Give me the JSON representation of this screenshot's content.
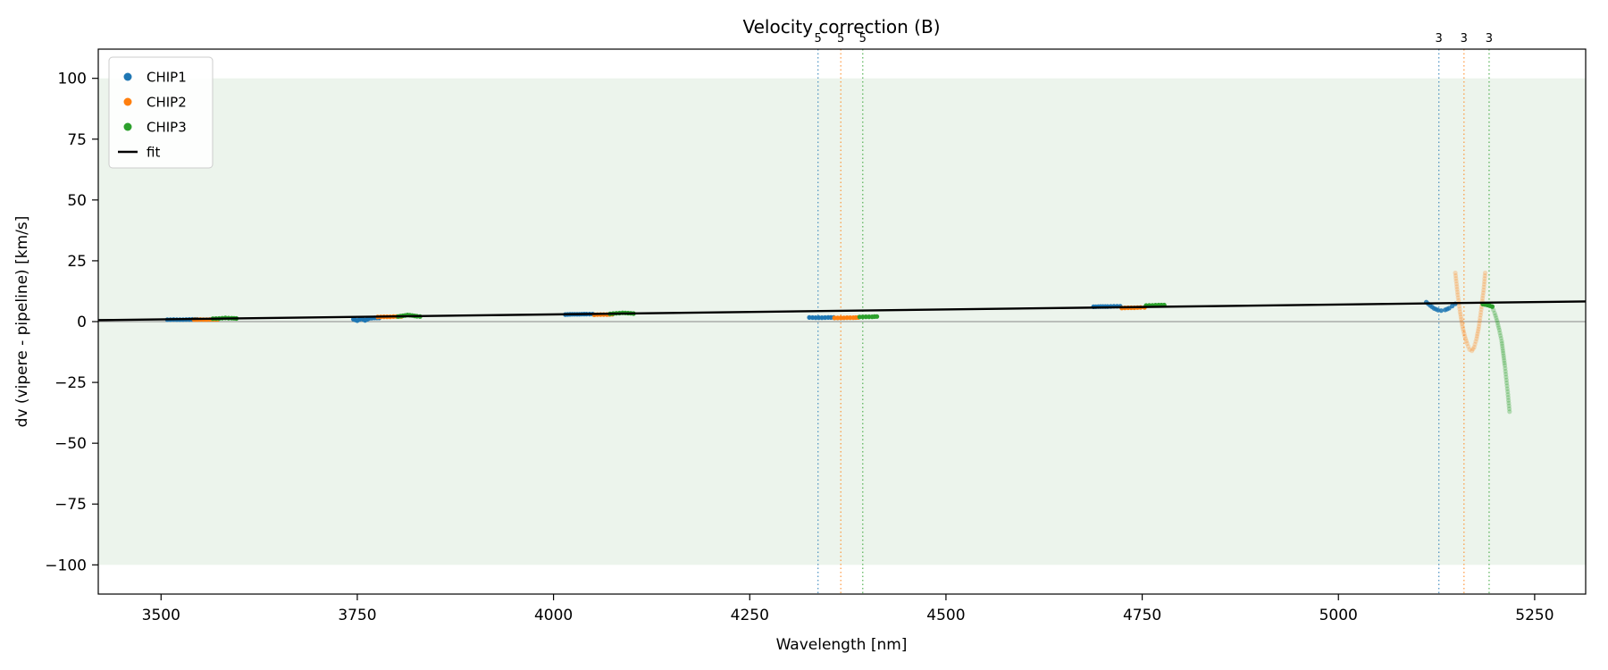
{
  "chart_data": {
    "type": "scatter",
    "title": "Velocity correction (B)",
    "xlabel": "Wavelength [nm]",
    "ylabel": "dv (vipere - pipeline) [km/s]",
    "xlim": [
      3420,
      5315
    ],
    "ylim": [
      -112,
      112
    ],
    "xticks": [
      3500,
      3750,
      4000,
      4250,
      4500,
      4750,
      5000,
      5250
    ],
    "yticks": [
      -100,
      -75,
      -50,
      -25,
      0,
      25,
      50,
      75,
      100
    ],
    "grid": false,
    "shaded_band": {
      "y0": -100,
      "y1": 100,
      "color": "#ecf4ec"
    },
    "zero_line": {
      "y": 0,
      "color": "#888888"
    },
    "fit_line": {
      "color": "#000000",
      "x": [
        3420,
        5315
      ],
      "y": [
        0.6,
        8.3
      ]
    },
    "legend": {
      "position": "upper-left",
      "items": [
        {
          "label": "CHIP1",
          "color": "#1f77b4",
          "marker": "dot"
        },
        {
          "label": "CHIP2",
          "color": "#ff7f0e",
          "marker": "dot"
        },
        {
          "label": "CHIP3",
          "color": "#2ca02c",
          "marker": "dot"
        },
        {
          "label": "fit",
          "color": "#000000",
          "marker": "line"
        }
      ]
    },
    "vlines": [
      {
        "x": 4337,
        "color": "#1f77b4",
        "label": "5"
      },
      {
        "x": 4366,
        "color": "#ff7f0e",
        "label": "5"
      },
      {
        "x": 4394,
        "color": "#2ca02c",
        "label": "5"
      },
      {
        "x": 5128,
        "color": "#1f77b4",
        "label": "3"
      },
      {
        "x": 5160,
        "color": "#ff7f0e",
        "label": "3"
      },
      {
        "x": 5192,
        "color": "#2ca02c",
        "label": "3"
      }
    ],
    "series": [
      {
        "name": "CHIP1",
        "color": "#1f77b4",
        "clusters": [
          {
            "alpha": 1.0,
            "points": [
              [
                3508,
                0.8
              ],
              [
                3516,
                0.85
              ],
              [
                3524,
                0.8
              ],
              [
                3532,
                0.85
              ],
              [
                3540,
                0.9
              ],
              [
                3546,
                0.9
              ]
            ]
          },
          {
            "alpha": 1.0,
            "points": [
              [
                3745,
                1.0
              ],
              [
                3750,
                0.4
              ],
              [
                3755,
                1.2
              ],
              [
                3760,
                0.5
              ],
              [
                3765,
                1.3
              ],
              [
                3772,
                1.5
              ],
              [
                3778,
                1.5
              ]
            ]
          },
          {
            "alpha": 1.0,
            "points": [
              [
                4015,
                2.9
              ],
              [
                4024,
                3.0
              ],
              [
                4033,
                3.0
              ],
              [
                4042,
                3.1
              ],
              [
                4050,
                3.1
              ]
            ]
          },
          {
            "alpha": 1.0,
            "points": [
              [
                4326,
                1.7
              ],
              [
                4334,
                1.6
              ],
              [
                4342,
                1.6
              ],
              [
                4350,
                1.7
              ],
              [
                4357,
                1.7
              ]
            ]
          },
          {
            "alpha": 1.0,
            "points": [
              [
                4688,
                6.1
              ],
              [
                4697,
                6.2
              ],
              [
                4706,
                6.2
              ],
              [
                4714,
                6.3
              ],
              [
                4722,
                6.3
              ]
            ]
          },
          {
            "alpha": 0.85,
            "points": [
              [
                5112,
                8.0
              ],
              [
                5117,
                6.6
              ],
              [
                5122,
                5.4
              ],
              [
                5127,
                4.7
              ],
              [
                5131,
                4.5
              ],
              [
                5136,
                4.8
              ],
              [
                5141,
                5.5
              ],
              [
                5145,
                6.4
              ],
              [
                5149,
                7.3
              ]
            ]
          }
        ]
      },
      {
        "name": "CHIP2",
        "color": "#ff7f0e",
        "clusters": [
          {
            "alpha": 1.0,
            "points": [
              [
                3542,
                0.8
              ],
              [
                3550,
                0.85
              ],
              [
                3558,
                0.8
              ],
              [
                3566,
                0.9
              ],
              [
                3572,
                0.9
              ]
            ]
          },
          {
            "alpha": 1.0,
            "points": [
              [
                3776,
                1.9
              ],
              [
                3784,
                2.0
              ],
              [
                3792,
                2.0
              ],
              [
                3800,
                2.1
              ],
              [
                3806,
                2.1
              ]
            ]
          },
          {
            "alpha": 1.0,
            "points": [
              [
                4052,
                2.8
              ],
              [
                4060,
                2.9
              ],
              [
                4068,
                2.9
              ],
              [
                4075,
                3.0
              ]
            ]
          },
          {
            "alpha": 1.0,
            "points": [
              [
                4358,
                1.5
              ],
              [
                4366,
                1.5
              ],
              [
                4374,
                1.6
              ],
              [
                4382,
                1.6
              ],
              [
                4388,
                1.7
              ]
            ]
          },
          {
            "alpha": 1.0,
            "points": [
              [
                4724,
                5.6
              ],
              [
                4732,
                5.7
              ],
              [
                4740,
                5.7
              ],
              [
                4748,
                5.8
              ],
              [
                4753,
                5.8
              ]
            ]
          },
          {
            "alpha": 0.25,
            "points": [
              [
                5149,
                20
              ],
              [
                5152,
                11
              ],
              [
                5155,
                4
              ],
              [
                5158,
                -2
              ],
              [
                5161,
                -6
              ],
              [
                5164,
                -9
              ],
              [
                5167,
                -11.5
              ],
              [
                5170,
                -12
              ],
              [
                5173,
                -10.5
              ],
              [
                5176,
                -7
              ],
              [
                5179,
                -2
              ],
              [
                5182,
                5
              ],
              [
                5185,
                13
              ],
              [
                5187,
                20
              ]
            ]
          }
        ]
      },
      {
        "name": "CHIP3",
        "color": "#2ca02c",
        "clusters": [
          {
            "alpha": 1.0,
            "points": [
              [
                3566,
                1.2
              ],
              [
                3574,
                1.3
              ],
              [
                3582,
                1.5
              ],
              [
                3590,
                1.4
              ],
              [
                3596,
                1.3
              ]
            ]
          },
          {
            "alpha": 1.0,
            "points": [
              [
                3802,
                2.1
              ],
              [
                3808,
                2.4
              ],
              [
                3814,
                2.7
              ],
              [
                3820,
                2.5
              ],
              [
                3826,
                2.2
              ],
              [
                3830,
                2.1
              ]
            ]
          },
          {
            "alpha": 1.0,
            "points": [
              [
                4072,
                3.2
              ],
              [
                4080,
                3.4
              ],
              [
                4088,
                3.6
              ],
              [
                4095,
                3.5
              ],
              [
                4102,
                3.3
              ]
            ]
          },
          {
            "alpha": 1.0,
            "points": [
              [
                4390,
                1.9
              ],
              [
                4398,
                2.0
              ],
              [
                4406,
                2.0
              ],
              [
                4412,
                2.1
              ]
            ]
          },
          {
            "alpha": 1.0,
            "points": [
              [
                4755,
                6.6
              ],
              [
                4763,
                6.7
              ],
              [
                4771,
                6.8
              ],
              [
                4778,
                6.8
              ]
            ]
          },
          {
            "alpha": 1.0,
            "points": [
              [
                5184,
                7.2
              ],
              [
                5190,
                6.8
              ],
              [
                5196,
                6.2
              ]
            ]
          },
          {
            "alpha": 0.3,
            "points": [
              [
                5196,
                6.0
              ],
              [
                5199,
                3.5
              ],
              [
                5202,
                0.5
              ],
              [
                5205,
                -3.5
              ],
              [
                5208,
                -8
              ],
              [
                5210,
                -13
              ],
              [
                5212,
                -18
              ],
              [
                5214,
                -24
              ],
              [
                5216,
                -30
              ],
              [
                5218,
                -37
              ]
            ]
          }
        ]
      }
    ]
  }
}
